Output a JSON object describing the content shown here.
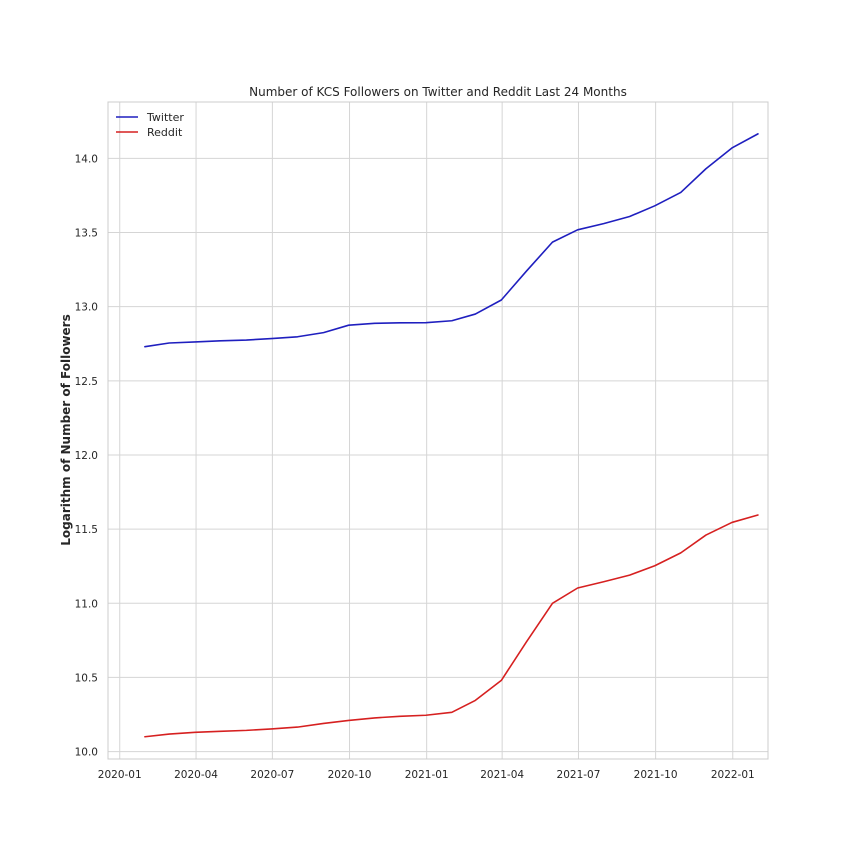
{
  "chart_data": {
    "type": "line",
    "title": "Number of KCS Followers on Twitter and Reddit Last 24 Months",
    "xlabel": "",
    "ylabel": "Logarithm of Number of Followers",
    "x_ticks": [
      "2020-01",
      "2020-04",
      "2020-07",
      "2020-10",
      "2021-01",
      "2021-04",
      "2021-07",
      "2021-10",
      "2022-01"
    ],
    "y_ticks": [
      "10.0",
      "10.5",
      "11.0",
      "11.5",
      "12.0",
      "12.5",
      "13.0",
      "13.5",
      "14.0"
    ],
    "xlim": [
      "2019-12-18",
      "2022-02-12"
    ],
    "ylim": [
      9.95,
      14.38
    ],
    "grid": true,
    "legend_position": "top-left",
    "x": [
      "2020-01-31",
      "2020-02-29",
      "2020-03-31",
      "2020-04-30",
      "2020-05-31",
      "2020-06-30",
      "2020-07-31",
      "2020-08-31",
      "2020-09-30",
      "2020-10-31",
      "2020-11-30",
      "2020-12-31",
      "2021-01-31",
      "2021-02-28",
      "2021-03-31",
      "2021-04-30",
      "2021-05-31",
      "2021-06-30",
      "2021-07-31",
      "2021-08-31",
      "2021-09-30",
      "2021-10-31",
      "2021-11-30",
      "2021-12-31",
      "2022-01-31"
    ],
    "series": [
      {
        "name": "Twitter",
        "color": "#1f1fbf",
        "values": [
          12.73,
          12.755,
          12.762,
          12.77,
          12.775,
          12.785,
          12.797,
          12.825,
          12.875,
          12.888,
          12.891,
          12.892,
          12.905,
          12.95,
          13.045,
          13.24,
          13.435,
          13.518,
          13.56,
          13.608,
          13.68,
          13.77,
          13.93,
          14.07,
          14.165
        ]
      },
      {
        "name": "Reddit",
        "color": "#d62020",
        "values": [
          10.1,
          10.118,
          10.13,
          10.137,
          10.143,
          10.153,
          10.165,
          10.19,
          10.21,
          10.227,
          10.238,
          10.245,
          10.265,
          10.345,
          10.48,
          10.74,
          11.0,
          11.103,
          11.145,
          11.19,
          11.253,
          11.34,
          11.46,
          11.545,
          11.595
        ]
      }
    ]
  }
}
